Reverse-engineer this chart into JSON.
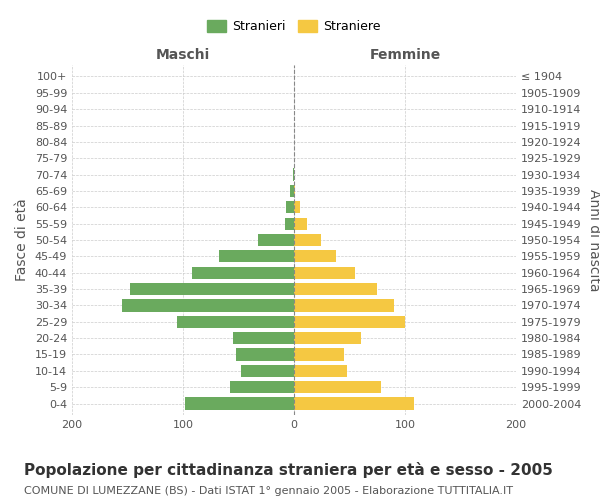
{
  "age_groups": [
    "100+",
    "95-99",
    "90-94",
    "85-89",
    "80-84",
    "75-79",
    "70-74",
    "65-69",
    "60-64",
    "55-59",
    "50-54",
    "45-49",
    "40-44",
    "35-39",
    "30-34",
    "25-29",
    "20-24",
    "15-19",
    "10-14",
    "5-9",
    "0-4"
  ],
  "birth_years": [
    "≤ 1904",
    "1905-1909",
    "1910-1914",
    "1915-1919",
    "1920-1924",
    "1925-1929",
    "1930-1934",
    "1935-1939",
    "1940-1944",
    "1945-1949",
    "1950-1954",
    "1955-1959",
    "1960-1964",
    "1965-1969",
    "1970-1974",
    "1975-1979",
    "1980-1984",
    "1985-1989",
    "1990-1994",
    "1995-1999",
    "2000-2004"
  ],
  "males": [
    0,
    0,
    0,
    0,
    0,
    0,
    1,
    4,
    7,
    8,
    32,
    68,
    92,
    148,
    155,
    105,
    55,
    52,
    48,
    58,
    98
  ],
  "females": [
    0,
    0,
    0,
    0,
    0,
    0,
    0,
    1,
    5,
    12,
    24,
    38,
    55,
    75,
    90,
    100,
    60,
    45,
    48,
    78,
    108
  ],
  "male_color": "#6aaa5e",
  "female_color": "#f5c842",
  "male_label": "Stranieri",
  "female_label": "Straniere",
  "title": "Popolazione per cittadinanza straniera per età e sesso - 2005",
  "subtitle": "COMUNE DI LUMEZZANE (BS) - Dati ISTAT 1° gennaio 2005 - Elaborazione TUTTITALIA.IT",
  "xlabel_left": "Maschi",
  "xlabel_right": "Femmine",
  "ylabel_left": "Fasce di età",
  "ylabel_right": "Anni di nascita",
  "xlim": 200,
  "background_color": "#ffffff",
  "grid_color": "#cccccc",
  "text_color": "#555555",
  "title_fontsize": 11,
  "subtitle_fontsize": 8,
  "tick_fontsize": 8,
  "label_fontsize": 10
}
